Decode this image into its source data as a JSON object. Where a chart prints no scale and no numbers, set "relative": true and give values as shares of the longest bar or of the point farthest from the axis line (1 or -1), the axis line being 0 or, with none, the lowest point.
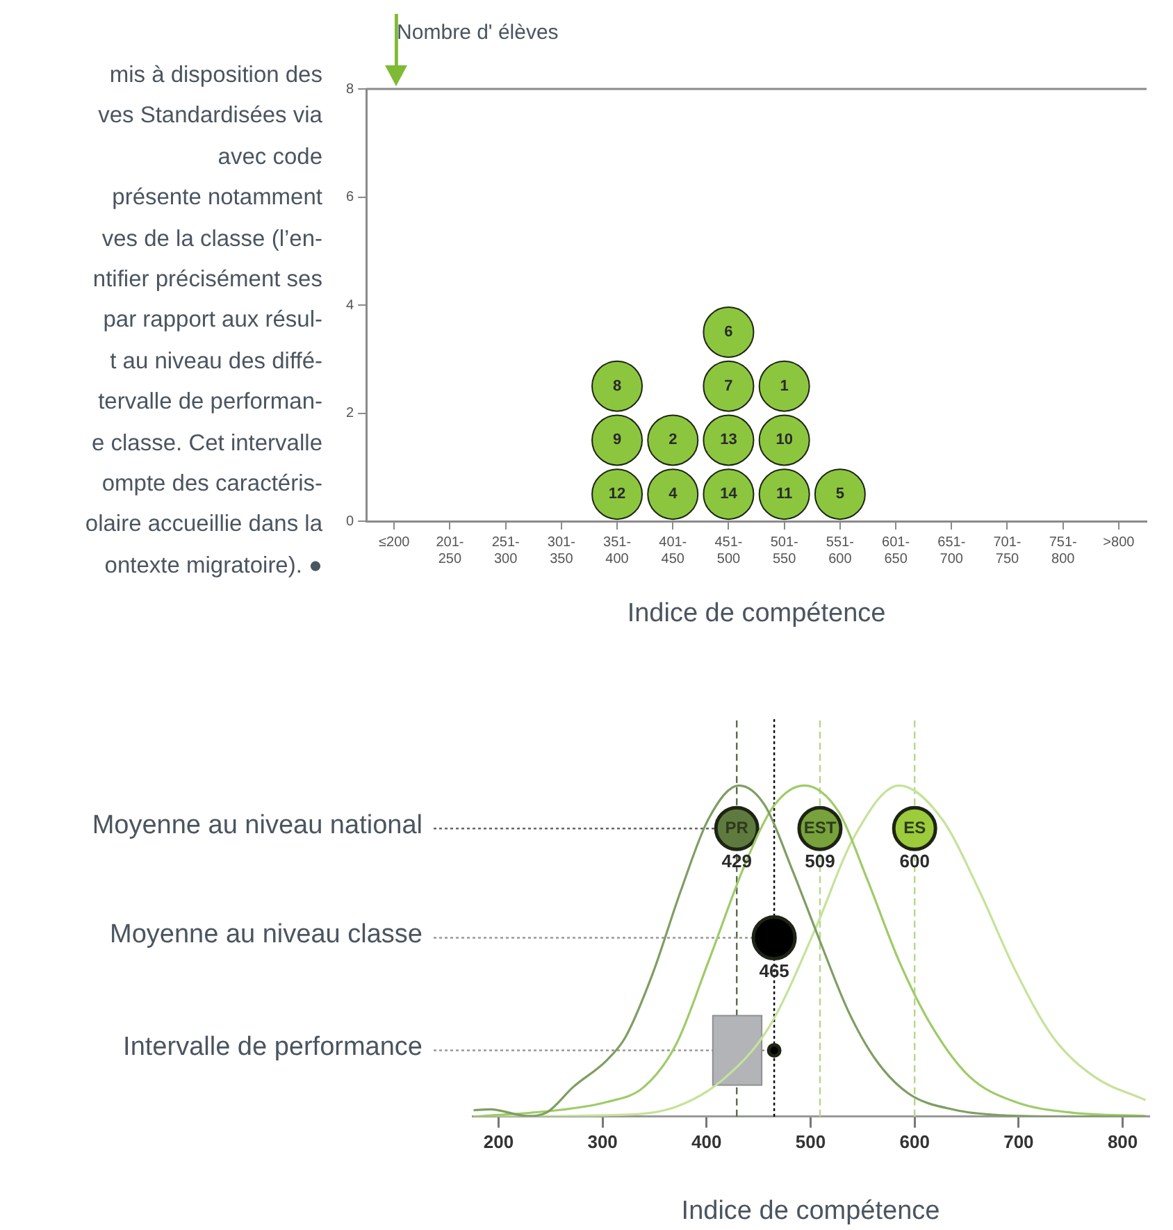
{
  "chart_data": [
    {
      "type": "other",
      "annotations": [
        "mis à disposition des\nves Standardisées via\navec code\nprésente notamment\nves de la classe (l’en-\nntifier précisément ses\npar rapport aux résul-\nt au niveau des diffé-\ntervalle de performan-\ne classe. Cet intervalle\nompte des caractéris-\nolaire accueillie dans la\nontexte migratoire). ●"
      ]
    },
    {
      "type": "scatter",
      "ylabel": "Nombre d' élèves",
      "xlabel": "Indice de compétence",
      "categories": [
        "≤200",
        "201-250",
        "251-300",
        "301-350",
        "351-400",
        "401-450",
        "451-500",
        "501-550",
        "551-600",
        "601-650",
        "651-700",
        "701-750",
        "751-800",
        ">800"
      ],
      "ylim": [
        0,
        8
      ],
      "yticks": [
        0,
        2,
        4,
        6,
        8
      ],
      "grid": false,
      "legend": false,
      "marker": "circle",
      "series": [
        {
          "color": "#8cc63f",
          "x": [
            "351-400",
            "351-400",
            "351-400",
            "401-450",
            "401-450",
            "451-500",
            "451-500",
            "451-500",
            "451-500",
            "501-550",
            "501-550",
            "501-550",
            "551-600"
          ],
          "values": [
            0.5,
            1.5,
            2.5,
            0.5,
            1.5,
            0.5,
            1.5,
            2.5,
            3.5,
            0.5,
            1.5,
            2.5,
            0.5
          ]
        }
      ],
      "annotations": [
        {
          "text": "12",
          "x": "351-400",
          "y": 0.5
        },
        {
          "text": "9",
          "x": "351-400",
          "y": 1.5
        },
        {
          "text": "8",
          "x": "351-400",
          "y": 2.5
        },
        {
          "text": "4",
          "x": "401-450",
          "y": 0.5
        },
        {
          "text": "2",
          "x": "401-450",
          "y": 1.5
        },
        {
          "text": "14",
          "x": "451-500",
          "y": 0.5
        },
        {
          "text": "13",
          "x": "451-500",
          "y": 1.5
        },
        {
          "text": "7",
          "x": "451-500",
          "y": 2.5
        },
        {
          "text": "6",
          "x": "451-500",
          "y": 3.5
        },
        {
          "text": "11",
          "x": "501-550",
          "y": 0.5
        },
        {
          "text": "10",
          "x": "501-550",
          "y": 1.5
        },
        {
          "text": "1",
          "x": "501-550",
          "y": 2.5
        },
        {
          "text": "5",
          "x": "551-600",
          "y": 0.5
        }
      ]
    },
    {
      "type": "line",
      "relative": true,
      "xlabel": "Indice de compétence",
      "xlim": [
        175,
        825
      ],
      "xticks": [
        200,
        300,
        400,
        500,
        600,
        700,
        800
      ],
      "grid": false,
      "legend": false,
      "series": [
        {
          "color": "#7f9e62",
          "x": [
            176,
            192,
            228,
            246,
            272,
            304,
            322,
            348,
            375,
            402,
            431,
            456,
            483,
            509,
            536,
            563,
            594,
            639,
            684,
            751,
            822
          ],
          "values": [
            0.019,
            0.022,
            0.002,
            0.012,
            0.09,
            0.17,
            0.24,
            0.43,
            0.68,
            0.9,
            1,
            0.94,
            0.74,
            0.53,
            0.32,
            0.17,
            0.07,
            0.02,
            0.004,
            0,
            0
          ]
        },
        {
          "color": "#9fcb68",
          "x": [
            176,
            259,
            304,
            340,
            371,
            402,
            438,
            465,
            494,
            527,
            554,
            585,
            617,
            653,
            697,
            751,
            822
          ],
          "values": [
            0,
            0.02,
            0.044,
            0.09,
            0.22,
            0.47,
            0.77,
            0.94,
            1,
            0.92,
            0.72,
            0.47,
            0.27,
            0.12,
            0.044,
            0.012,
            0.002
          ]
        },
        {
          "color": "#c6e29a",
          "x": [
            176,
            326,
            371,
            415,
            460,
            505,
            541,
            585,
            626,
            661,
            697,
            733,
            773,
            822
          ],
          "values": [
            0,
            0.006,
            0.03,
            0.11,
            0.27,
            0.57,
            0.84,
            1,
            0.9,
            0.69,
            0.44,
            0.24,
            0.12,
            0.05
          ]
        },
        {
          "name": "PR",
          "type": "scatter",
          "color": "#5f7a3e",
          "x": [
            429
          ],
          "values": [
            0.87
          ]
        },
        {
          "name": "EST",
          "type": "scatter",
          "color": "#77a23c",
          "x": [
            509
          ],
          "values": [
            0.87
          ]
        },
        {
          "name": "ES",
          "type": "scatter",
          "color": "#9ccb3b",
          "x": [
            600
          ],
          "values": [
            0.87
          ]
        },
        {
          "type": "scatter",
          "color": "#000000",
          "x": [
            465
          ],
          "values": [
            0.54
          ]
        },
        {
          "type": "scatter",
          "color": "#000000",
          "x": [
            465
          ],
          "values": [
            0.2
          ]
        }
      ],
      "annotations": [
        {
          "text": "429",
          "x": 429,
          "y": 0.87
        },
        {
          "text": "509",
          "x": 509,
          "y": 0.87
        },
        {
          "text": "600",
          "x": 600,
          "y": 0.87
        },
        {
          "text": "465",
          "x": 465,
          "y": 0.54
        }
      ],
      "bands": [
        {
          "axis": "x",
          "from": 406,
          "to": 453,
          "color": "#b2b4b7"
        }
      ],
      "ref_lines": [
        {
          "axis": "x",
          "value": 429,
          "color": "#5a6b48",
          "line_style": "dashed"
        },
        {
          "axis": "x",
          "value": 509,
          "color": "#b5d68a",
          "line_style": "dashed"
        },
        {
          "axis": "x",
          "value": 600,
          "color": "#b5d68a",
          "line_style": "dashed"
        },
        {
          "axis": "x",
          "value": 465,
          "color": "#000000",
          "line_style": "dotted"
        },
        {
          "axis": "y",
          "value": 0.87,
          "label": "Moyenne au niveau national",
          "color": "#666666",
          "line_style": "dotted"
        },
        {
          "axis": "y",
          "value": 0.54,
          "label": "Moyenne au niveau classe",
          "color": "#999999",
          "line_style": "dotted"
        },
        {
          "axis": "y",
          "value": 0.2,
          "label": "Intervalle de performance",
          "color": "#999999",
          "line_style": "dotted"
        }
      ]
    }
  ]
}
